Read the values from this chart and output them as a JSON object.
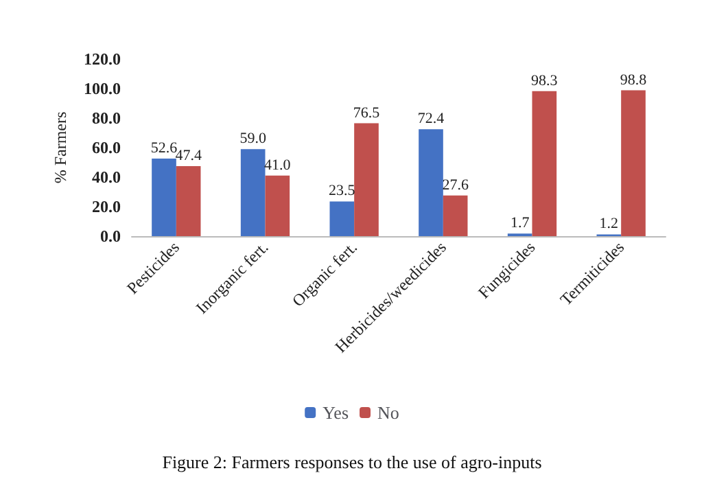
{
  "chart_data": {
    "type": "bar",
    "title": "Figure 2: Farmers responses to the use of agro-inputs",
    "ylabel": "% Farmers",
    "categories": [
      "Pesticides",
      "Inorganic fert.",
      "Organic fert.",
      "Herbicides/weedicides",
      "Fungicides",
      "Termiticides"
    ],
    "series": [
      {
        "name": "Yes",
        "color": "#4472c4",
        "values": [
          52.6,
          59.0,
          23.5,
          72.4,
          1.7,
          1.2
        ],
        "value_labels": [
          "52.6",
          "59.0",
          "23.5",
          "72.4",
          "1.7",
          "1.2"
        ]
      },
      {
        "name": "No",
        "color": "#c0504d",
        "values": [
          47.4,
          41.0,
          76.5,
          27.6,
          98.3,
          98.8
        ],
        "value_labels": [
          "47.4",
          "41.0",
          "76.5",
          "27.6",
          "98.3",
          "98.8"
        ]
      }
    ],
    "ylim": [
      0,
      120
    ],
    "yticks": [
      {
        "value": 0,
        "label": "0.0"
      },
      {
        "value": 20,
        "label": "20.0"
      },
      {
        "value": 40,
        "label": "40.0"
      },
      {
        "value": 60,
        "label": "60.0"
      },
      {
        "value": 80,
        "label": "80.0"
      },
      {
        "value": 100,
        "label": "100.0"
      },
      {
        "value": 120,
        "label": "120.0"
      }
    ],
    "legend": "bottom",
    "grid": false
  }
}
